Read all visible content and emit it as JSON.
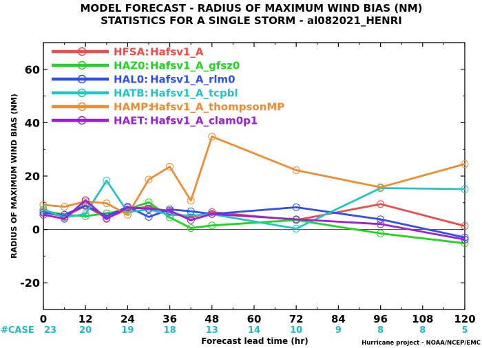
{
  "chart_data": {
    "type": "line",
    "title_line1": "MODEL FORECAST - RADIUS OF MAXIMUM WIND BIAS (NM)",
    "title_line2": "STATISTICS FOR A SINGLE STORM - al082021_HENRI",
    "xlabel": "Forecast lead time (hr)",
    "ylabel": "RADIUS OF MAXIMUM WIND BIAS (NM)",
    "credit": "Hurricane project - NOAA/NCEP/EMC",
    "xlim": [
      0,
      120
    ],
    "ylim": [
      -30,
      70
    ],
    "xticks": [
      0,
      12,
      24,
      36,
      48,
      60,
      72,
      84,
      96,
      108,
      120
    ],
    "yticks": [
      -20,
      0,
      20,
      40,
      60
    ],
    "zero_line": true,
    "grid": false,
    "legend_position": "top-left",
    "case_label": "#CASE",
    "case_counts": [
      {
        "x": 0,
        "n": "23"
      },
      {
        "x": 12,
        "n": "20"
      },
      {
        "x": 24,
        "n": "19"
      },
      {
        "x": 36,
        "n": "18"
      },
      {
        "x": 48,
        "n": "13"
      },
      {
        "x": 60,
        "n": "14"
      },
      {
        "x": 72,
        "n": "10"
      },
      {
        "x": 84,
        "n": "9"
      },
      {
        "x": 96,
        "n": "8"
      },
      {
        "x": 108,
        "n": "8"
      },
      {
        "x": 120,
        "n": "5"
      }
    ],
    "case_color": "#1fb8c4",
    "series": [
      {
        "name": "HFSA:",
        "desc": "Hafsv1_A",
        "color": "#f24a4a",
        "x": [
          0,
          6,
          12,
          18,
          24,
          30,
          36,
          42,
          48,
          72,
          96,
          120
        ],
        "y": [
          6.5,
          4.8,
          8.8,
          4.2,
          7.5,
          8.5,
          6.5,
          4.5,
          6.5,
          3.5,
          9.5,
          1.3
        ]
      },
      {
        "name": "HAZ0:",
        "desc": "Hafsv1_A_gfsz0",
        "color": "#1ed61e",
        "x": [
          0,
          6,
          12,
          18,
          24,
          30,
          36,
          42,
          48,
          72,
          96,
          120
        ],
        "y": [
          7.0,
          5.5,
          5.0,
          6.0,
          7.5,
          10.2,
          4.5,
          0.5,
          1.5,
          3.5,
          -1.5,
          -5.2
        ]
      },
      {
        "name": "HAL0:",
        "desc": "Hafsv1_A_rlm0",
        "color": "#2f4ff0",
        "x": [
          0,
          6,
          12,
          18,
          24,
          30,
          36,
          42,
          48,
          72,
          96,
          120
        ],
        "y": [
          6.2,
          5.5,
          9.0,
          5.0,
          8.5,
          4.7,
          7.5,
          6.8,
          5.8,
          8.3,
          3.8,
          -3.0
        ]
      },
      {
        "name": "HATB:",
        "desc": "Hafsv1_A_tcpbl",
        "color": "#22c4c4",
        "x": [
          0,
          6,
          12,
          18,
          24,
          30,
          36,
          42,
          48,
          72,
          96,
          120
        ],
        "y": [
          7.5,
          4.5,
          5.8,
          18.3,
          6.5,
          7.5,
          5.5,
          5.2,
          5.7,
          0.3,
          15.5,
          15.1
        ]
      },
      {
        "name": "HAMP:",
        "desc": "Hafsv1_A_thompsonMP",
        "color": "#f08c30",
        "x": [
          0,
          6,
          12,
          18,
          24,
          30,
          36,
          42,
          48,
          72,
          96,
          120
        ],
        "y": [
          9.2,
          8.5,
          10.5,
          9.8,
          5.5,
          18.7,
          23.5,
          10.8,
          34.8,
          22.2,
          15.8,
          24.5
        ]
      },
      {
        "name": "HAET:",
        "desc": "Hafsv1_A_clam0p1",
        "color": "#9a22d4",
        "x": [
          0,
          6,
          12,
          18,
          24,
          30,
          36,
          42,
          48,
          72,
          96,
          120
        ],
        "y": [
          5.5,
          4.0,
          11.0,
          4.0,
          8.2,
          7.8,
          7.0,
          3.5,
          5.8,
          3.8,
          2.0,
          -3.8
        ]
      }
    ]
  }
}
